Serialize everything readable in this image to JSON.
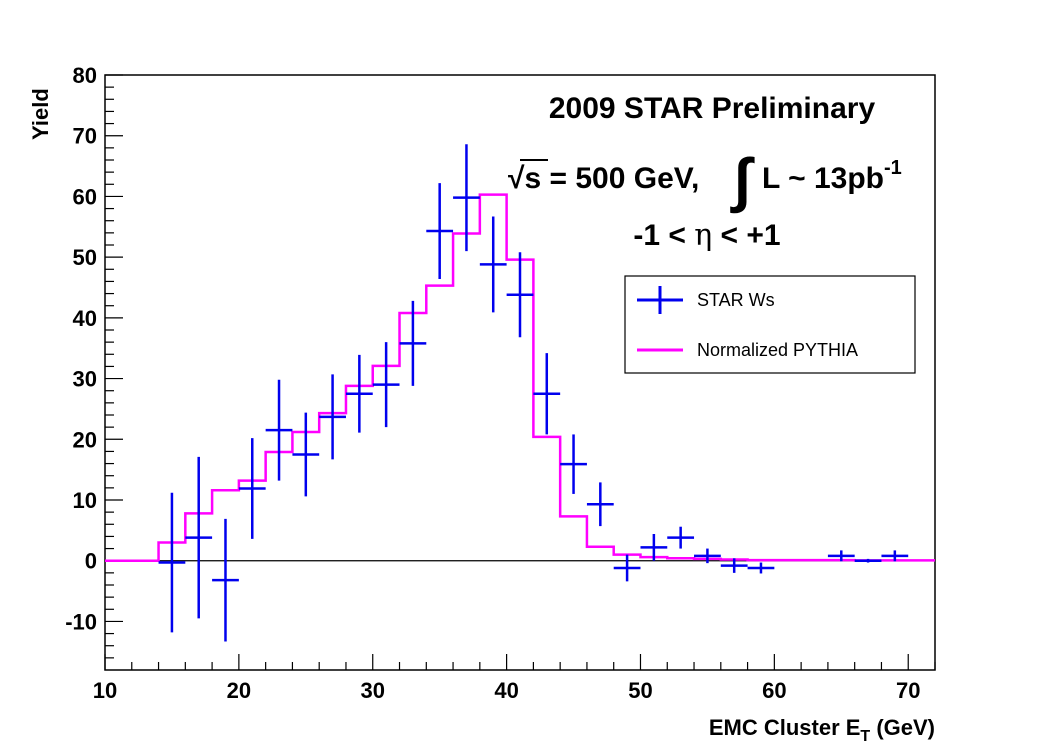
{
  "chart_data": {
    "type": "line",
    "xlabel": "EMC Cluster E",
    "xlabel_sub": "T",
    "xlabel_unit": " (GeV)",
    "ylabel": "Yield",
    "xlim": [
      10,
      72
    ],
    "ylim": [
      -18,
      80
    ],
    "x_ticks": [
      10,
      20,
      30,
      40,
      50,
      60,
      70
    ],
    "y_ticks": [
      -10,
      0,
      10,
      20,
      30,
      40,
      50,
      60,
      70,
      80
    ],
    "x_tick_labels": [
      "10",
      "20",
      "30",
      "40",
      "50",
      "60",
      "70"
    ],
    "y_tick_labels": [
      "-10",
      "0",
      "10",
      "20",
      "30",
      "40",
      "50",
      "60",
      "70",
      "80"
    ],
    "zero_line": true,
    "annotations": {
      "line1": "2009 STAR Preliminary",
      "sqrt": "√s",
      "line2_rest": " = 500 GeV,",
      "integral": "∫",
      "line2_lumi": "L ~ 13pb",
      "line2_sup": "-1",
      "line3_a": "-1 < ",
      "line3_eta": "η",
      "line3_b": " < +1"
    },
    "legend_position": "right",
    "series": [
      {
        "name": "STAR Ws",
        "color": "#0000ee",
        "kind": "points-with-errors",
        "points": [
          {
            "x": 15,
            "y": -0.3,
            "err": 11.5
          },
          {
            "x": 17,
            "y": 3.8,
            "err": 13.3
          },
          {
            "x": 19,
            "y": -3.2,
            "err": 10.1
          },
          {
            "x": 21,
            "y": 11.9,
            "err": 8.3
          },
          {
            "x": 23,
            "y": 21.5,
            "err": 8.3
          },
          {
            "x": 25,
            "y": 17.5,
            "err": 6.9
          },
          {
            "x": 27,
            "y": 23.7,
            "err": 7.0
          },
          {
            "x": 29,
            "y": 27.5,
            "err": 6.4
          },
          {
            "x": 31,
            "y": 29.0,
            "err": 7.0
          },
          {
            "x": 33,
            "y": 35.8,
            "err": 7.0
          },
          {
            "x": 35,
            "y": 54.3,
            "err": 7.9
          },
          {
            "x": 37,
            "y": 59.8,
            "err": 8.8
          },
          {
            "x": 39,
            "y": 48.8,
            "err": 7.9
          },
          {
            "x": 41,
            "y": 43.8,
            "err": 7.0
          },
          {
            "x": 43,
            "y": 27.5,
            "err": 6.7
          },
          {
            "x": 45,
            "y": 15.9,
            "err": 4.9
          },
          {
            "x": 47,
            "y": 9.3,
            "err": 3.6
          },
          {
            "x": 49,
            "y": -1.2,
            "err": 2.2
          },
          {
            "x": 51,
            "y": 2.2,
            "err": 2.2
          },
          {
            "x": 53,
            "y": 3.8,
            "err": 1.8
          },
          {
            "x": 55,
            "y": 0.8,
            "err": 1.2
          },
          {
            "x": 57,
            "y": -0.8,
            "err": 1.2
          },
          {
            "x": 59,
            "y": -1.2,
            "err": 0.9
          },
          {
            "x": 65,
            "y": 0.8,
            "err": 0.9
          },
          {
            "x": 67,
            "y": 0.0,
            "err": 0.3
          },
          {
            "x": 69,
            "y": 0.8,
            "err": 0.9
          }
        ]
      },
      {
        "name": "Normalized PYTHIA",
        "color": "#ff00ff",
        "kind": "step",
        "edges": [
          10,
          14,
          16,
          18,
          20,
          22,
          24,
          26,
          28,
          30,
          32,
          34,
          36,
          38,
          40,
          42,
          44,
          46,
          48,
          50,
          52,
          54,
          56,
          58,
          60,
          62,
          64,
          66,
          68,
          70,
          72
        ],
        "values": [
          0,
          3.0,
          7.8,
          11.6,
          13.2,
          17.9,
          21.2,
          24.3,
          28.8,
          32.1,
          40.8,
          45.3,
          53.9,
          60.3,
          49.6,
          20.4,
          7.3,
          2.3,
          1.0,
          0.6,
          0.4,
          0.3,
          0.2,
          0.1,
          0.1,
          0.1,
          0.1,
          0.05,
          0.05,
          0.05
        ]
      }
    ]
  }
}
